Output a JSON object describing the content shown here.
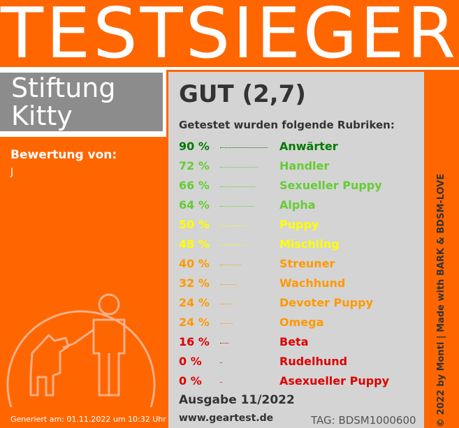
{
  "banner": {
    "title": "TESTSIEGER"
  },
  "subject": {
    "line1": "Stiftung",
    "line2": "Kitty"
  },
  "rating_by": {
    "label": "Bewertung von:",
    "value": "J"
  },
  "generated": "Generiert am: 01.11.2022 um 10:32 Uhr",
  "panel": {
    "grade": "GUT (2,7)",
    "intro": "Getestet wurden folgende Rubriken:",
    "rows": [
      {
        "pct": "90 %",
        "value": 90,
        "name": "Anwärter",
        "color": "#007a00"
      },
      {
        "pct": "72 %",
        "value": 72,
        "name": "Handler",
        "color": "#66cc33"
      },
      {
        "pct": "66 %",
        "value": 66,
        "name": "Sexueller Puppy",
        "color": "#66cc33"
      },
      {
        "pct": "64 %",
        "value": 64,
        "name": "Alpha",
        "color": "#66cc33"
      },
      {
        "pct": "50 %",
        "value": 50,
        "name": "Puppy",
        "color": "#ffff00"
      },
      {
        "pct": "48 %",
        "value": 48,
        "name": "Mischling",
        "color": "#ffff00"
      },
      {
        "pct": "40 %",
        "value": 40,
        "name": "Streuner",
        "color": "#ff9900"
      },
      {
        "pct": "32 %",
        "value": 32,
        "name": "Wachhund",
        "color": "#ff9900"
      },
      {
        "pct": "24 %",
        "value": 24,
        "name": "Devoter Puppy",
        "color": "#ff9900"
      },
      {
        "pct": "24 %",
        "value": 24,
        "name": "Omega",
        "color": "#ff9900"
      },
      {
        "pct": "16 %",
        "value": 16,
        "name": "Beta",
        "color": "#dd0000"
      },
      {
        "pct": "0 %",
        "value": 0,
        "name": "Rudelhund",
        "color": "#dd0000"
      },
      {
        "pct": "0 %",
        "value": 0,
        "name": "Asexueller Puppy",
        "color": "#dd0000"
      }
    ],
    "issue": "Ausgabe 11/2022",
    "website": "www.geartest.de",
    "tag": "TAG: BDSM1000600"
  },
  "copyright": "© 2022 by Monti | Made with BARK & BDSM-LOVE",
  "colors": {
    "orange": "#ff6600",
    "gray_header": "#8c8c8c",
    "panel": "#d4d4d4"
  },
  "icons": {
    "emblem": "handler-with-dog-icon"
  }
}
